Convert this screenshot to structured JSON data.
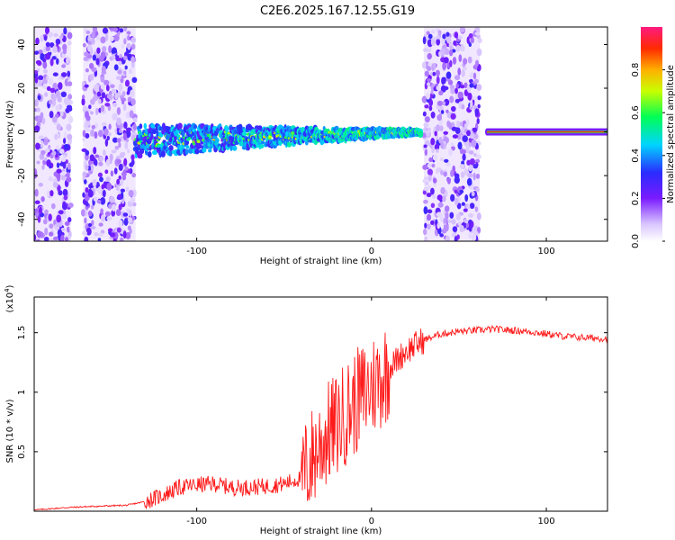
{
  "title": "C2E6.2025.167.12.55.G19",
  "colors": {
    "snr_line": "#ff1a1a",
    "axis": "#000000"
  },
  "chart_data": [
    {
      "type": "heatmap",
      "title": "C2E6.2025.167.12.55.G19",
      "xlabel": "Height of straight line (km)",
      "ylabel": "Frequency (Hz)",
      "xlim": [
        -193,
        135
      ],
      "ylim": [
        -50,
        48
      ],
      "x_ticks": [
        -100,
        0,
        100
      ],
      "y_ticks": [
        -40,
        -20,
        0,
        20,
        40
      ],
      "colorbar": {
        "label": "Normalized spectral amplitude",
        "range": [
          0,
          1
        ],
        "ticks": [
          0.0,
          0.2,
          0.4,
          0.6,
          0.8
        ]
      },
      "features": [
        {
          "kind": "noise_band",
          "x_range": [
            -193,
            -172
          ],
          "amplitude": 0.2
        },
        {
          "kind": "noise_band",
          "x_range": [
            -165,
            -135
          ],
          "amplitude": 0.2
        },
        {
          "kind": "noise_band",
          "x_range": [
            30,
            62
          ],
          "amplitude": 0.25
        },
        {
          "kind": "signal_track",
          "x_range": [
            -135,
            28
          ],
          "freq_start": -4,
          "freq_end": 0,
          "amplitude": 0.55
        },
        {
          "kind": "signal_track",
          "x_range": [
            66,
            135
          ],
          "freq_start": 0,
          "freq_end": 0,
          "amplitude": 0.95
        }
      ]
    },
    {
      "type": "line",
      "title": "",
      "xlabel": "Height of straight line (km)",
      "ylabel": "SNR (10 * v/v)",
      "y_scale_label": "(x10^4)",
      "y_scale_base": "(x10",
      "y_scale_exp": "4",
      "y_scale_close": ")",
      "xlim": [
        -193,
        135
      ],
      "ylim": [
        0,
        1.8
      ],
      "x_ticks": [
        -100,
        0,
        100
      ],
      "y_ticks": [
        0.5,
        1.0,
        1.5
      ],
      "series": [
        {
          "x": [
            -193,
            -175,
            -160,
            -140,
            -130,
            -120,
            -110,
            -100,
            -90,
            -80,
            -70,
            -60,
            -50,
            -40,
            -35,
            -30,
            -25,
            -20,
            -15,
            -10,
            -5,
            0,
            5,
            10,
            15,
            20,
            30,
            40,
            50,
            60,
            70,
            80,
            90,
            100,
            110,
            120,
            135
          ],
          "y": [
            0.01,
            0.03,
            0.04,
            0.05,
            0.08,
            0.13,
            0.2,
            0.22,
            0.23,
            0.2,
            0.2,
            0.21,
            0.23,
            0.28,
            0.42,
            0.55,
            0.65,
            0.72,
            0.82,
            0.9,
            0.98,
            1.05,
            1.12,
            1.2,
            1.28,
            1.35,
            1.44,
            1.49,
            1.51,
            1.52,
            1.53,
            1.52,
            1.51,
            1.49,
            1.47,
            1.46,
            1.45
          ]
        }
      ]
    }
  ]
}
